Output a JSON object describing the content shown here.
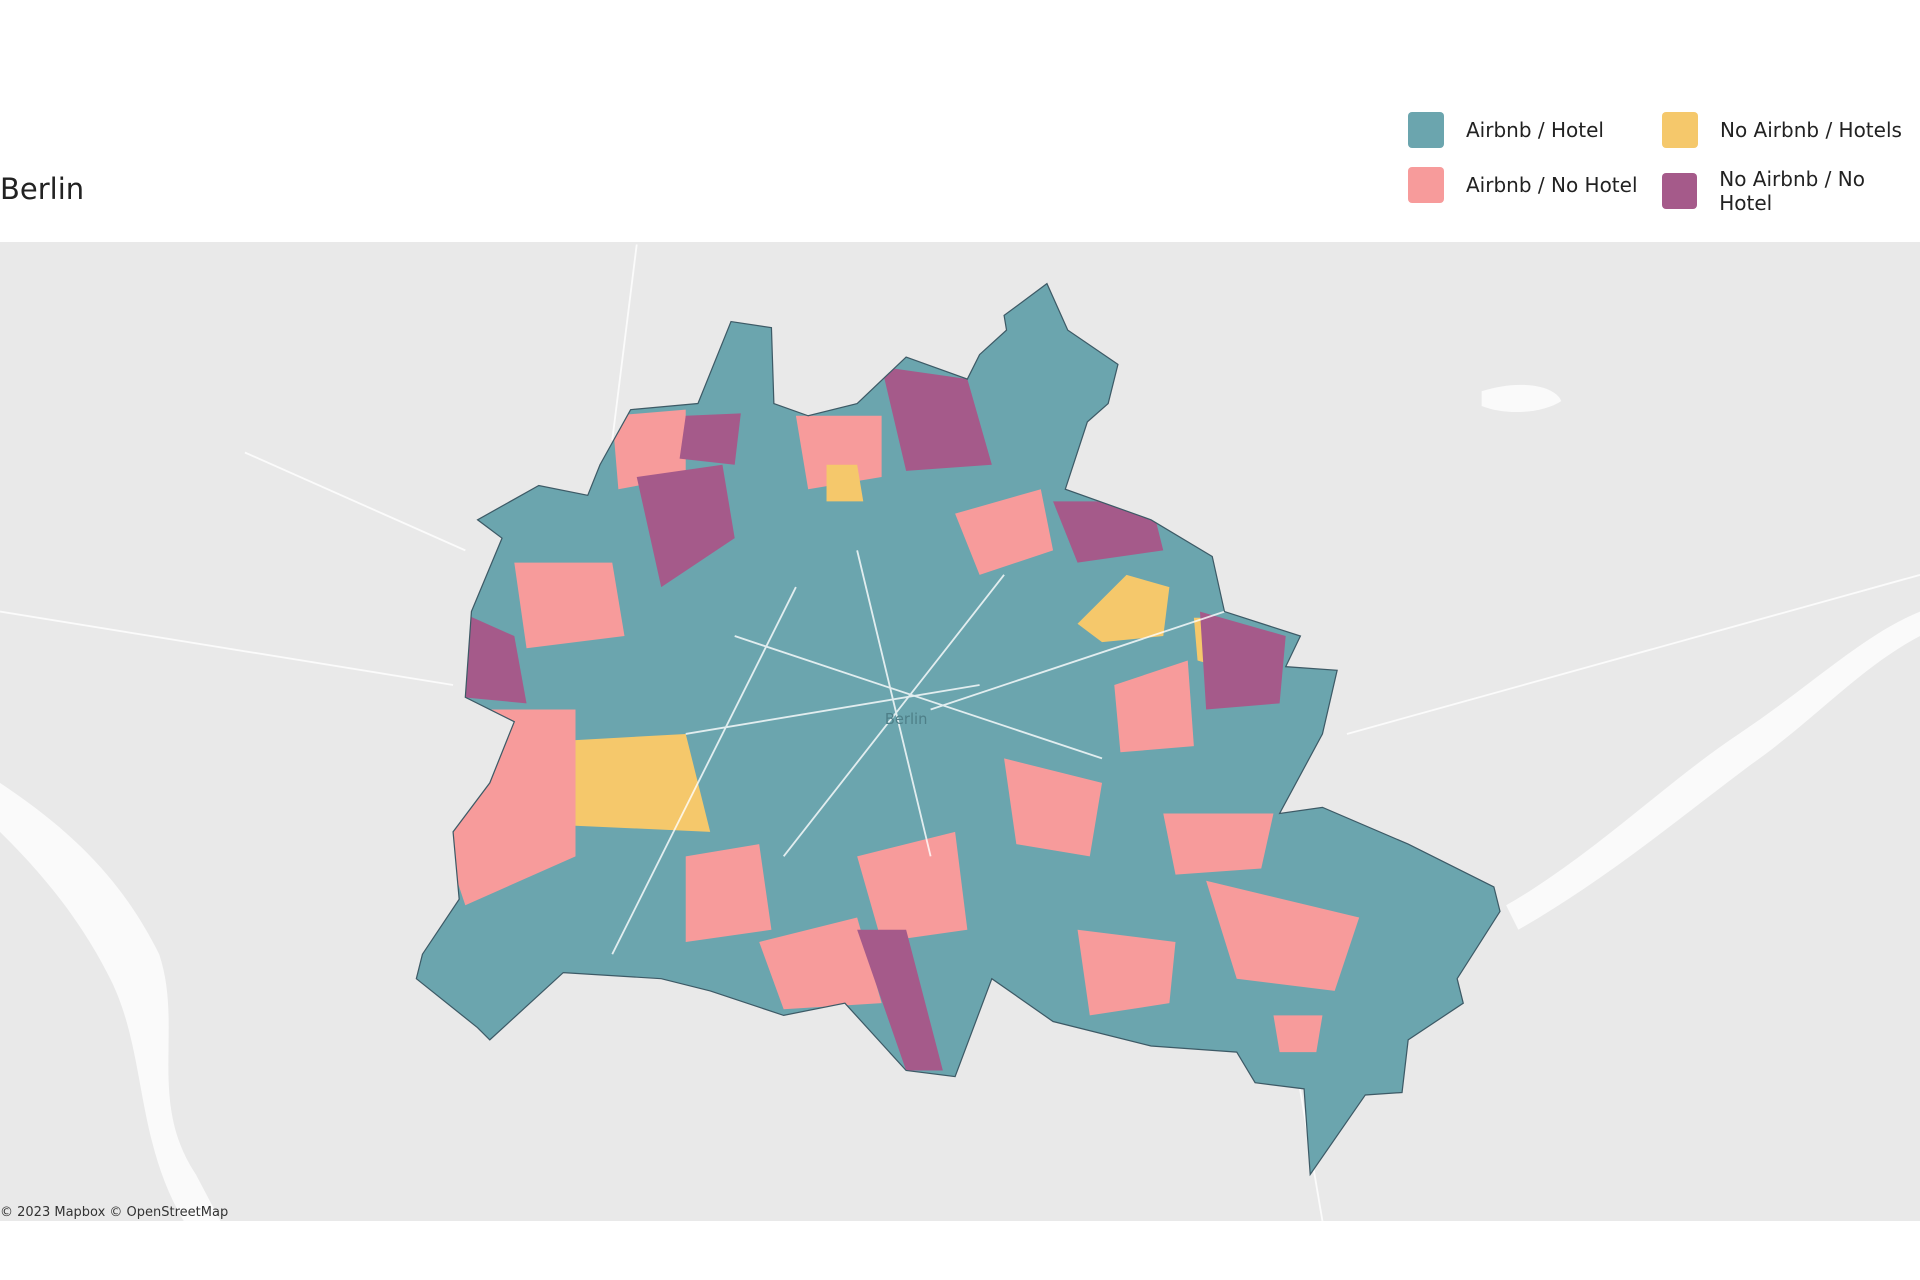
{
  "header": {
    "title": "Berlin"
  },
  "legend": [
    {
      "label": "Airbnb / Hotel",
      "color": "#6ba5ae"
    },
    {
      "label": "No Airbnb / Hotels",
      "color": "#f5c86b"
    },
    {
      "label": "Airbnb / No Hotel",
      "color": "#f79b9b"
    },
    {
      "label": "No Airbnb / No Hotel",
      "color": "#a55a8a"
    }
  ],
  "map": {
    "place_label": "Berlin",
    "attribution": "© 2023 Mapbox © OpenStreetMap"
  }
}
